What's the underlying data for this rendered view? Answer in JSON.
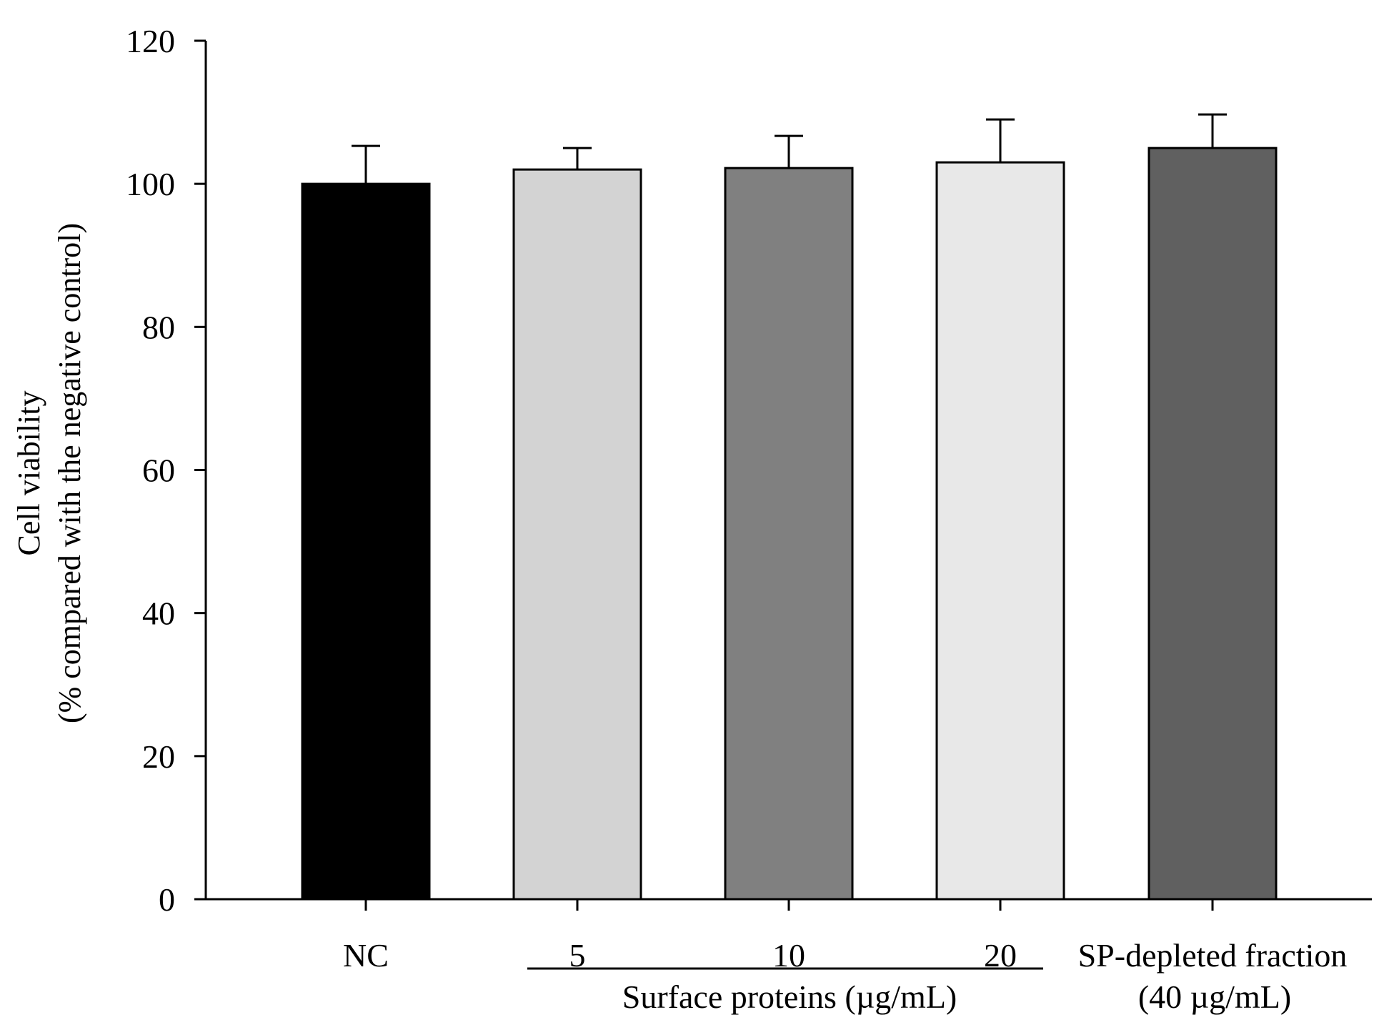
{
  "chart_data": {
    "type": "bar",
    "title": "",
    "ylabel_line1": "Cell viability",
    "ylabel_line2": "(% compared with the negative control)",
    "ylim": [
      0,
      120
    ],
    "yticks": [
      "0",
      "20",
      "40",
      "60",
      "80",
      "100",
      "120"
    ],
    "categories": [
      "NC",
      "5",
      "10",
      "20",
      "SP-depleted fraction"
    ],
    "category_sub": "(40 µg/mL)",
    "group_label": "Surface proteins (µg/mL)",
    "values": [
      100,
      102,
      102.2,
      103,
      105
    ],
    "errors": [
      5.3,
      3.0,
      4.5,
      6.0,
      4.7
    ],
    "colors": [
      "#000000",
      "#d3d3d3",
      "#808080",
      "#e8e8e8",
      "#606060"
    ],
    "grid": false
  }
}
